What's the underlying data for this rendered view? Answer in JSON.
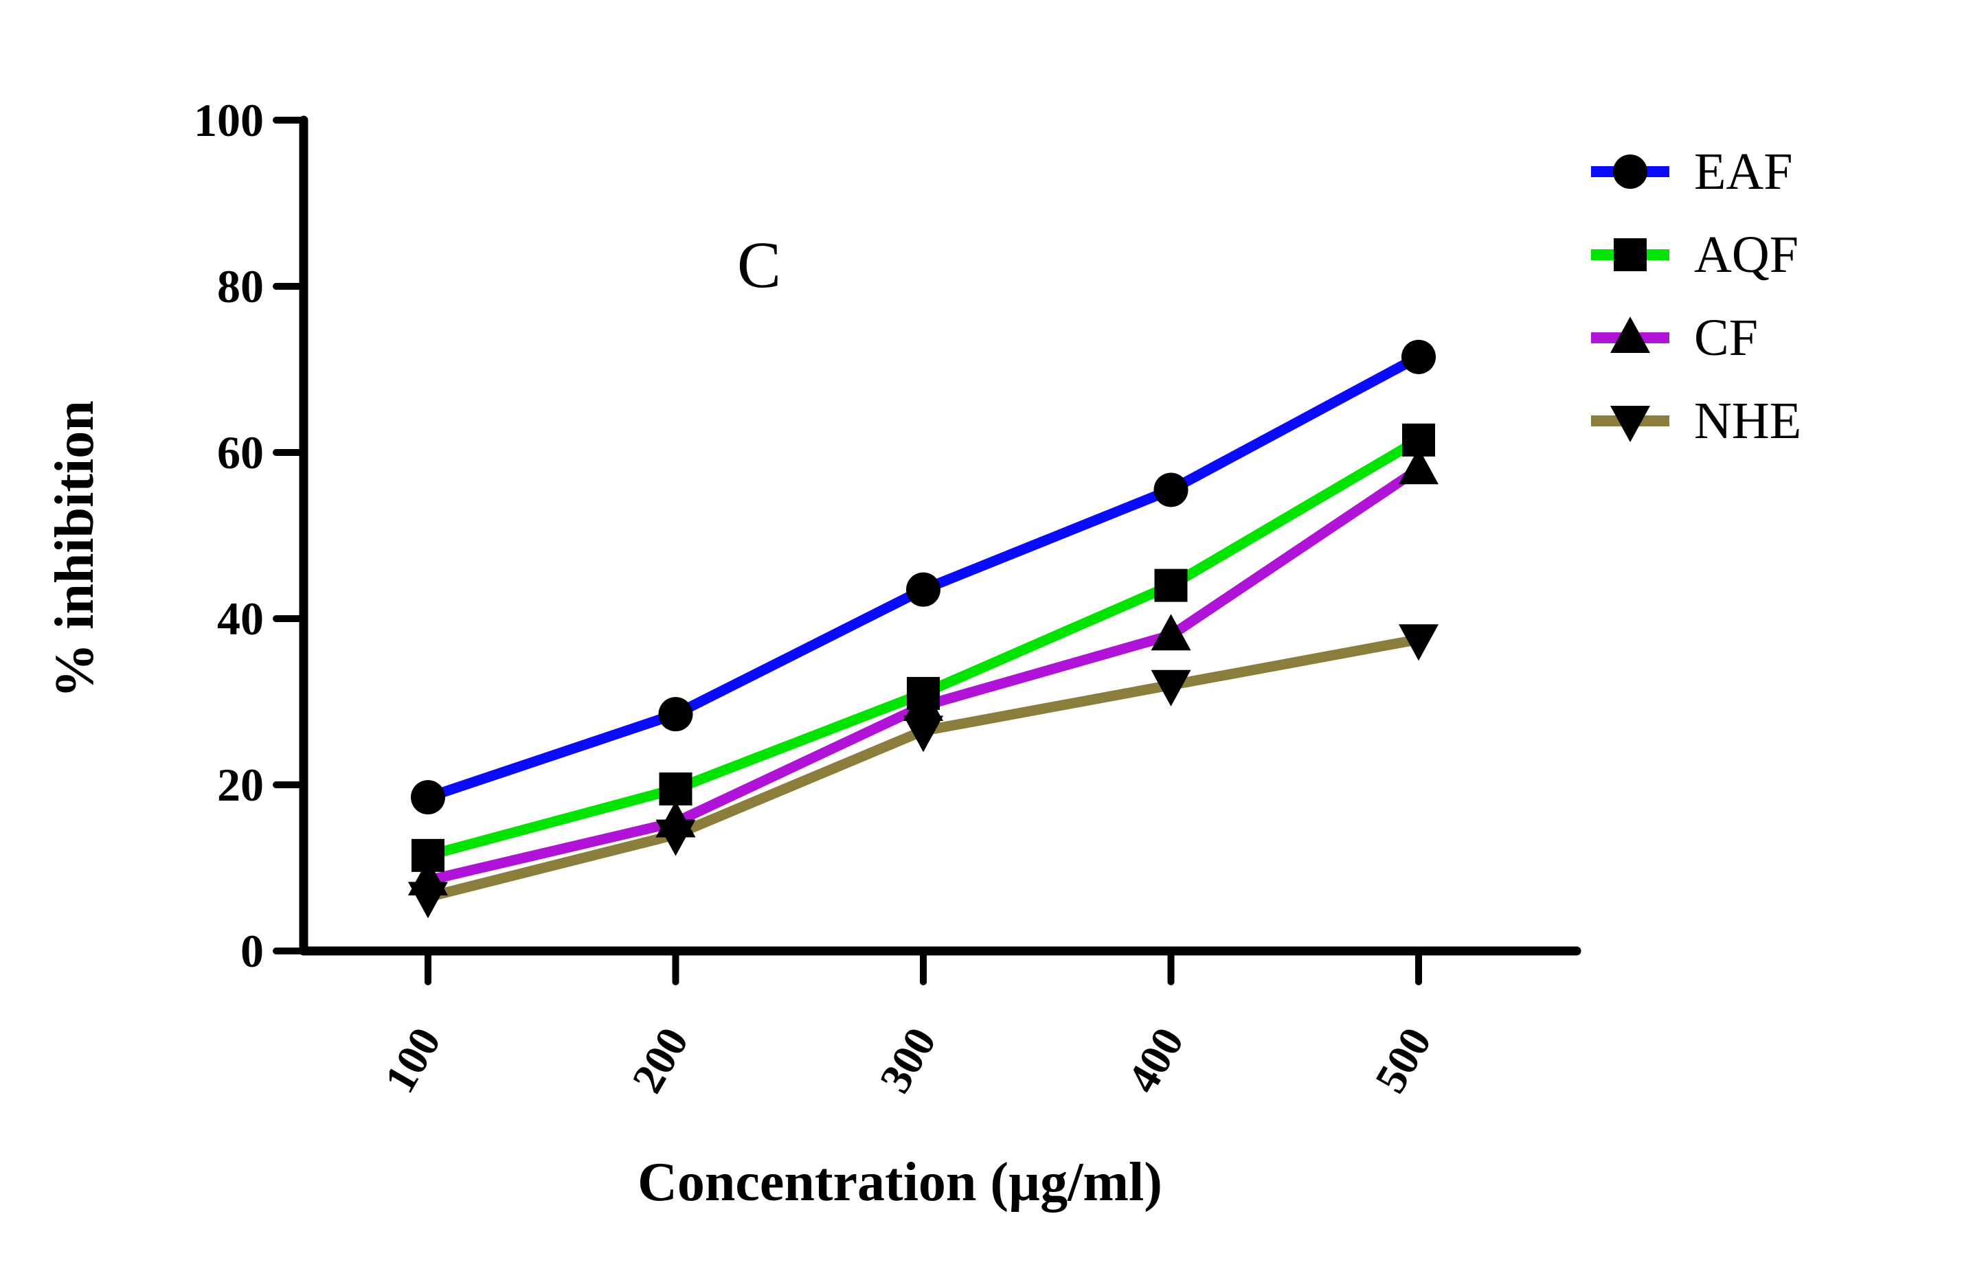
{
  "figure": {
    "panel_label": "C",
    "background_color": "#FFFFFF"
  },
  "chart_data": {
    "type": "line",
    "title": "",
    "panel_label": "C",
    "xlabel": "Concentration (µg/ml)",
    "ylabel": "% inhibition",
    "categories": [
      "100",
      "200",
      "300",
      "400",
      "500"
    ],
    "x_values": [
      100,
      200,
      300,
      400,
      500
    ],
    "ylim": [
      0,
      100
    ],
    "yticks": [
      0,
      20,
      40,
      60,
      80,
      100
    ],
    "grid": false,
    "legend_position": "right",
    "axis_color": "#000000",
    "marker_color": "#000000",
    "series": [
      {
        "name": "EAF",
        "color": "#0A0AFF",
        "marker": "circle",
        "values": [
          18.5,
          28.5,
          43.5,
          55.5,
          71.5
        ]
      },
      {
        "name": "AQF",
        "color": "#00E400",
        "marker": "square",
        "values": [
          11.5,
          19.5,
          31,
          44,
          61.5
        ]
      },
      {
        "name": "CF",
        "color": "#B012D8",
        "marker": "triangle-up",
        "values": [
          8.5,
          15.5,
          29.5,
          38,
          58
        ]
      },
      {
        "name": "NHE",
        "color": "#8B7D3B",
        "marker": "triangle-down",
        "values": [
          6.5,
          14,
          26.5,
          32,
          37.5
        ]
      }
    ]
  }
}
